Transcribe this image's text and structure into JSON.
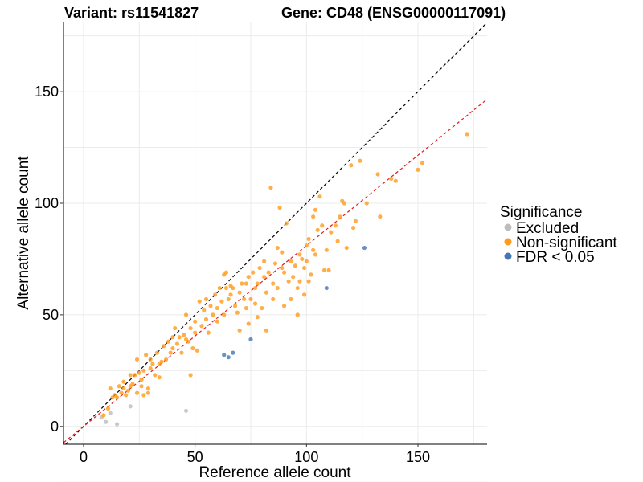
{
  "header": {
    "variant": "Variant: rs11541827",
    "gene": "Gene: CD48 (ENSG00000117091)"
  },
  "legend": {
    "title": "Significance",
    "items": [
      {
        "label": "Excluded",
        "color": "#bdbdbd"
      },
      {
        "label": "Non-significant",
        "color": "#ff9a1a"
      },
      {
        "label": "FDR < 0.05",
        "color": "#4575b4"
      }
    ]
  },
  "chart_data": {
    "type": "scatter",
    "xlabel": "Reference allele count",
    "ylabel": "Alternative allele count",
    "xlim": [
      -9,
      181
    ],
    "ylim": [
      -8,
      181
    ],
    "x_ticks": [
      0,
      50,
      100,
      150
    ],
    "y_ticks": [
      0,
      50,
      100,
      150
    ],
    "grid": true,
    "legend_position": "right",
    "reference_lines": [
      {
        "style": "dashed",
        "color": "#000000",
        "slope": 1.0,
        "intercept": 0
      },
      {
        "style": "dashed",
        "color": "#e41a1c",
        "slope": 0.81,
        "intercept": 0
      }
    ],
    "series": [
      {
        "name": "Excluded",
        "color": "#bdbdbd",
        "points": [
          [
            8,
            4
          ],
          [
            10,
            2
          ],
          [
            12,
            6
          ],
          [
            15,
            1
          ],
          [
            21,
            9
          ],
          [
            46,
            7
          ]
        ]
      },
      {
        "name": "Non-significant",
        "color": "#ff9a1a",
        "points": [
          [
            9,
            5
          ],
          [
            11,
            8
          ],
          [
            12,
            17
          ],
          [
            13,
            13
          ],
          [
            14,
            14
          ],
          [
            15,
            13
          ],
          [
            16,
            18
          ],
          [
            17,
            15
          ],
          [
            18,
            20
          ],
          [
            18,
            17
          ],
          [
            19,
            14
          ],
          [
            20,
            16
          ],
          [
            21,
            18
          ],
          [
            21,
            23
          ],
          [
            22,
            19
          ],
          [
            23,
            23
          ],
          [
            24,
            15
          ],
          [
            24,
            30
          ],
          [
            25,
            24
          ],
          [
            26,
            21
          ],
          [
            26,
            18
          ],
          [
            27,
            14
          ],
          [
            27,
            25
          ],
          [
            28,
            32
          ],
          [
            29,
            15
          ],
          [
            29,
            17
          ],
          [
            30,
            30
          ],
          [
            30,
            26
          ],
          [
            31,
            28
          ],
          [
            32,
            23
          ],
          [
            33,
            33
          ],
          [
            34,
            22
          ],
          [
            34,
            28
          ],
          [
            35,
            29
          ],
          [
            36,
            36
          ],
          [
            37,
            30
          ],
          [
            38,
            38
          ],
          [
            39,
            33
          ],
          [
            40,
            40
          ],
          [
            40,
            35
          ],
          [
            41,
            44
          ],
          [
            42,
            37
          ],
          [
            43,
            40
          ],
          [
            44,
            33
          ],
          [
            45,
            41
          ],
          [
            46,
            39
          ],
          [
            46,
            50
          ],
          [
            47,
            38
          ],
          [
            48,
            44
          ],
          [
            48,
            23
          ],
          [
            49,
            35
          ],
          [
            50,
            47
          ],
          [
            50,
            42
          ],
          [
            51,
            34
          ],
          [
            52,
            56
          ],
          [
            53,
            45
          ],
          [
            54,
            52
          ],
          [
            55,
            57
          ],
          [
            55,
            48
          ],
          [
            56,
            42
          ],
          [
            57,
            54
          ],
          [
            58,
            50
          ],
          [
            59,
            59
          ],
          [
            60,
            53
          ],
          [
            60,
            47
          ],
          [
            61,
            62
          ],
          [
            62,
            56
          ],
          [
            63,
            68
          ],
          [
            63,
            50
          ],
          [
            64,
            69
          ],
          [
            64,
            62
          ],
          [
            65,
            57
          ],
          [
            66,
            63
          ],
          [
            66,
            59
          ],
          [
            67,
            62
          ],
          [
            68,
            54
          ],
          [
            69,
            51
          ],
          [
            70,
            60
          ],
          [
            70,
            43
          ],
          [
            71,
            64
          ],
          [
            72,
            57
          ],
          [
            73,
            64
          ],
          [
            73,
            53
          ],
          [
            74,
            67
          ],
          [
            74,
            46
          ],
          [
            75,
            57
          ],
          [
            76,
            69
          ],
          [
            77,
            62
          ],
          [
            77,
            55
          ],
          [
            78,
            64
          ],
          [
            78,
            49
          ],
          [
            79,
            71
          ],
          [
            80,
            53
          ],
          [
            81,
            74
          ],
          [
            81,
            67
          ],
          [
            82,
            60
          ],
          [
            82,
            43
          ],
          [
            83,
            69
          ],
          [
            84,
            107
          ],
          [
            85,
            64
          ],
          [
            85,
            57
          ],
          [
            86,
            73
          ],
          [
            87,
            80
          ],
          [
            87,
            62
          ],
          [
            88,
            98
          ],
          [
            89,
            78
          ],
          [
            89,
            71
          ],
          [
            90,
            69
          ],
          [
            90,
            54
          ],
          [
            91,
            91
          ],
          [
            92,
            65
          ],
          [
            93,
            74
          ],
          [
            93,
            57
          ],
          [
            94,
            67
          ],
          [
            95,
            72
          ],
          [
            96,
            62
          ],
          [
            96,
            50
          ],
          [
            97,
            77
          ],
          [
            97,
            65
          ],
          [
            98,
            75
          ],
          [
            99,
            71
          ],
          [
            99,
            59
          ],
          [
            100,
            81
          ],
          [
            100,
            74
          ],
          [
            101,
            84
          ],
          [
            101,
            65
          ],
          [
            102,
            68
          ],
          [
            103,
            79
          ],
          [
            103,
            94
          ],
          [
            104,
            77
          ],
          [
            104,
            97
          ],
          [
            105,
            88
          ],
          [
            106,
            103
          ],
          [
            107,
            90
          ],
          [
            108,
            70
          ],
          [
            109,
            79
          ],
          [
            110,
            70
          ],
          [
            111,
            87
          ],
          [
            113,
            90
          ],
          [
            114,
            83
          ],
          [
            115,
            94
          ],
          [
            116,
            101
          ],
          [
            117,
            100
          ],
          [
            118,
            80
          ],
          [
            120,
            117
          ],
          [
            121,
            89
          ],
          [
            122,
            92
          ],
          [
            124,
            119
          ],
          [
            127,
            100
          ],
          [
            132,
            113
          ],
          [
            133,
            94
          ],
          [
            138,
            111
          ],
          [
            140,
            110
          ],
          [
            150,
            115
          ],
          [
            152,
            118
          ],
          [
            172,
            131
          ]
        ]
      },
      {
        "name": "FDR < 0.05",
        "color": "#4575b4",
        "points": [
          [
            63,
            32
          ],
          [
            65,
            31
          ],
          [
            67,
            33
          ],
          [
            75,
            39
          ],
          [
            109,
            62
          ],
          [
            126,
            80
          ]
        ]
      }
    ]
  }
}
